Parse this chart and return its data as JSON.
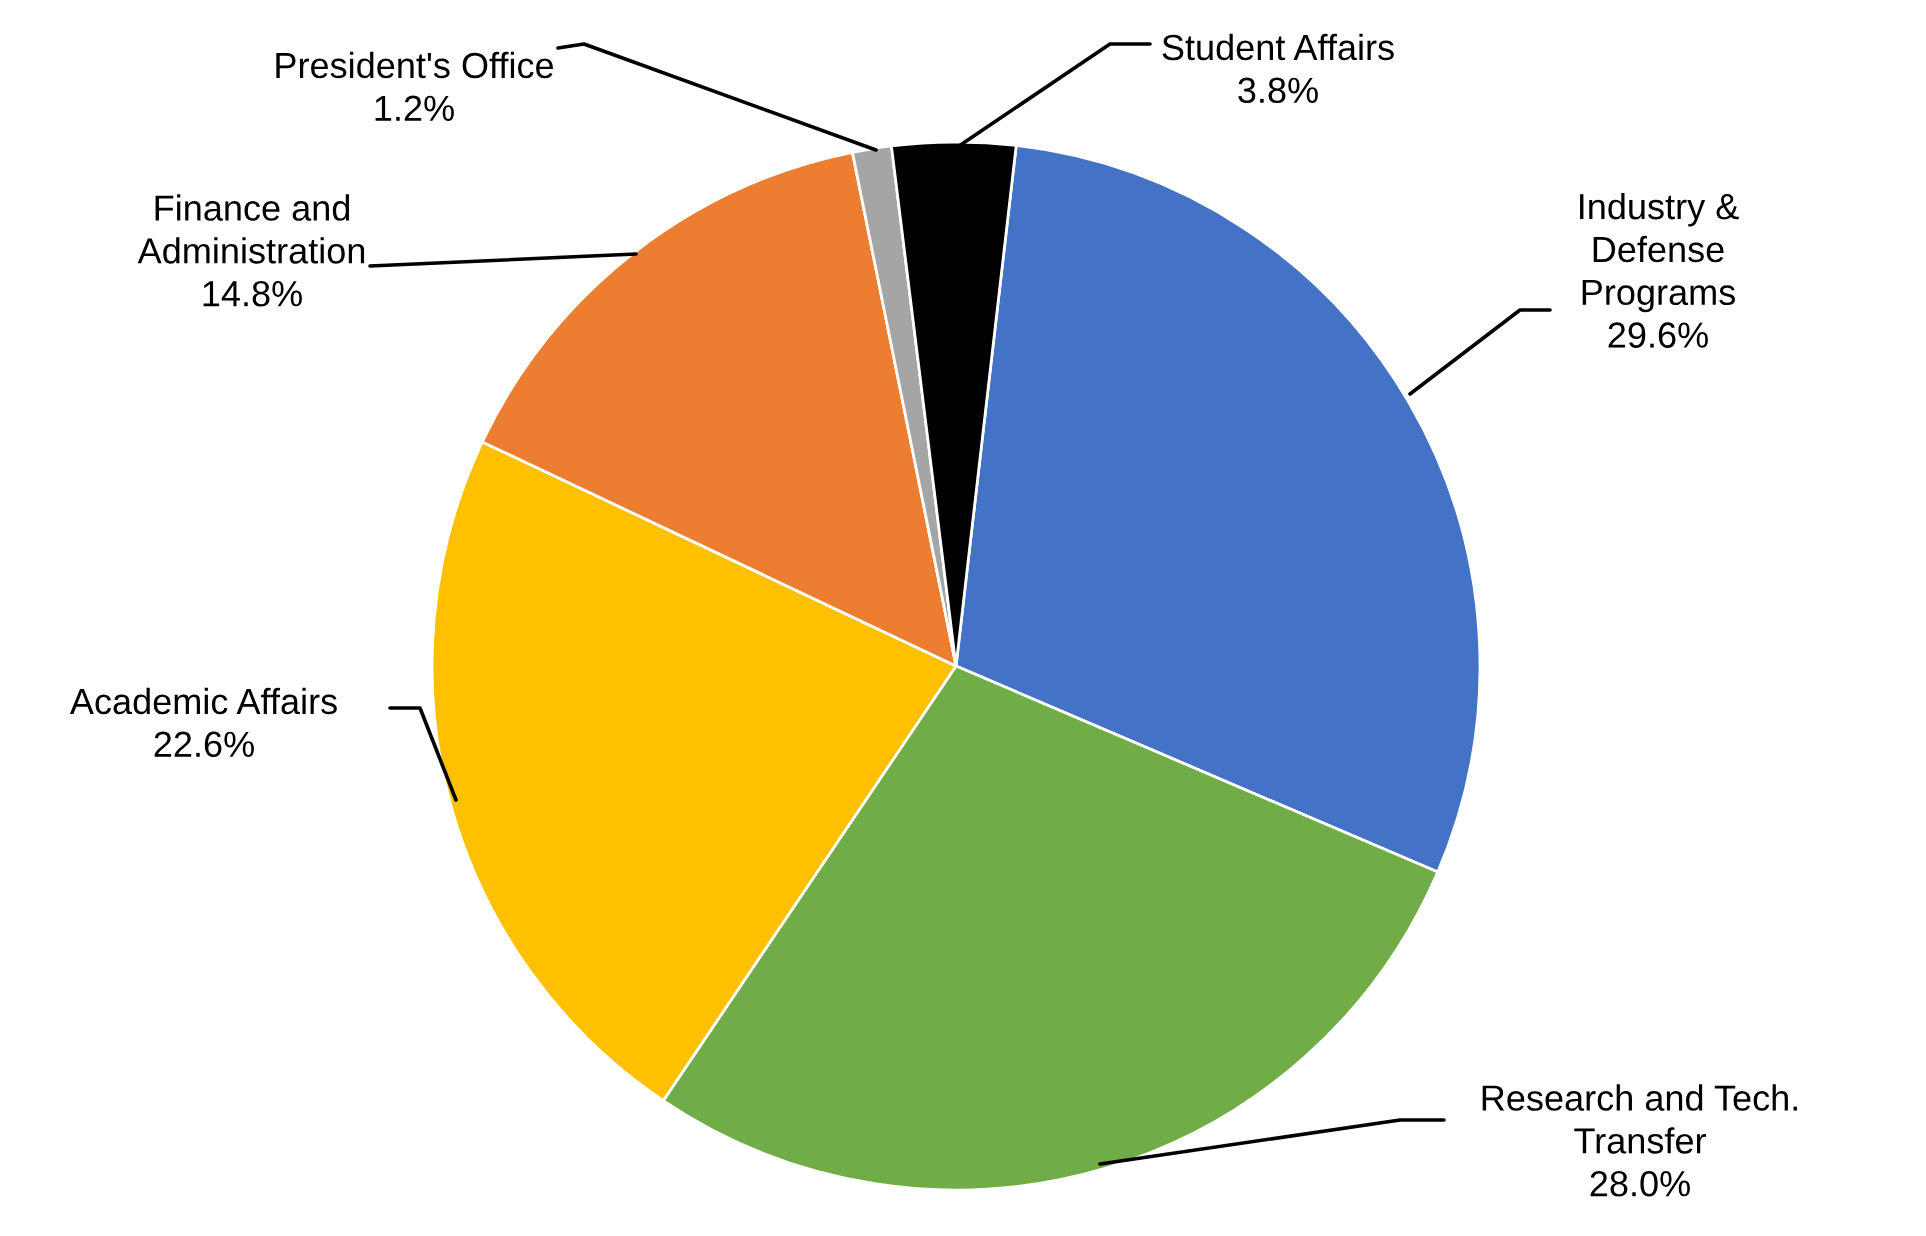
{
  "chart_data": {
    "type": "pie",
    "categories": [
      "Industry & Defense Programs",
      "Research and Tech. Transfer",
      "Academic Affairs",
      "Finance and Administration",
      "President's Office",
      "Student Affairs"
    ],
    "values": [
      29.6,
      28.0,
      22.6,
      14.8,
      1.2,
      3.8
    ],
    "colors": [
      "#4472c4",
      "#70ad47",
      "#ffc000",
      "#ed7d31",
      "#a5a5a5",
      "#000000"
    ],
    "value_labels": [
      "29.6%",
      "28.0%",
      "22.6%",
      "14.8%",
      "1.2%",
      "3.8%"
    ]
  }
}
